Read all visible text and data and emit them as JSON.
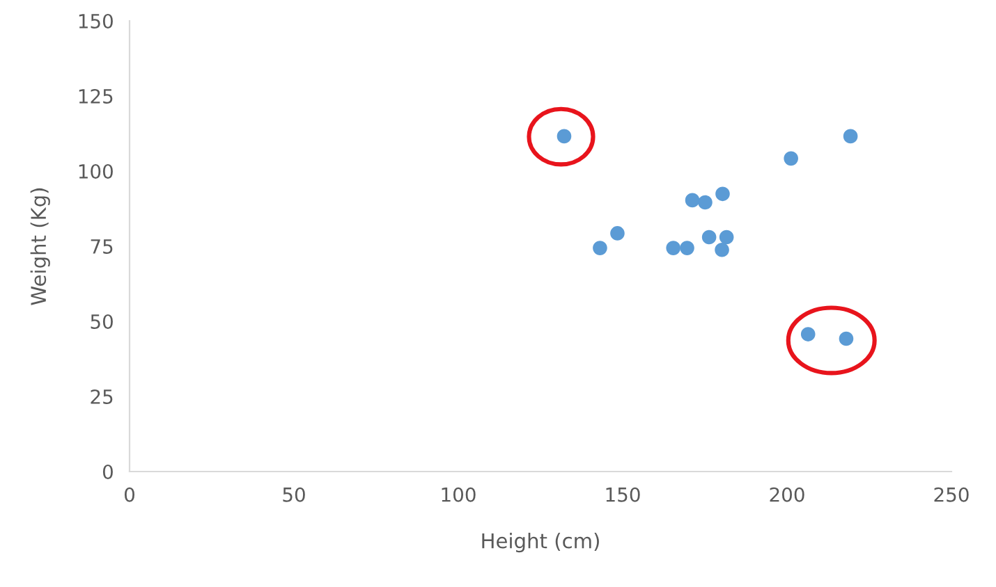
{
  "chart_data": {
    "type": "scatter",
    "xlabel": "Height (cm)",
    "ylabel": "Weight (Kg)",
    "series": [
      {
        "color": "#5b9bd5",
        "marker": "circle",
        "x": [
          132.2,
          143.1,
          148.4,
          165.4,
          169.6,
          171.2,
          175.1,
          180.4,
          176.3,
          181.6,
          180.2,
          201.2,
          219.3,
          206.4,
          218.0
        ],
        "values": [
          111.6,
          74.4,
          79.3,
          74.4,
          74.4,
          90.3,
          89.6,
          92.4,
          78.0,
          78.0,
          73.8,
          104.2,
          111.6,
          45.7,
          44.2
        ]
      }
    ],
    "xlim": [
      0,
      250
    ],
    "xticks": [
      0,
      50,
      100,
      150,
      200,
      250
    ],
    "ylim": [
      0,
      150
    ],
    "yticks": [
      0,
      25,
      50,
      75,
      100,
      125,
      150
    ],
    "grid": false,
    "legend": false
  }
}
